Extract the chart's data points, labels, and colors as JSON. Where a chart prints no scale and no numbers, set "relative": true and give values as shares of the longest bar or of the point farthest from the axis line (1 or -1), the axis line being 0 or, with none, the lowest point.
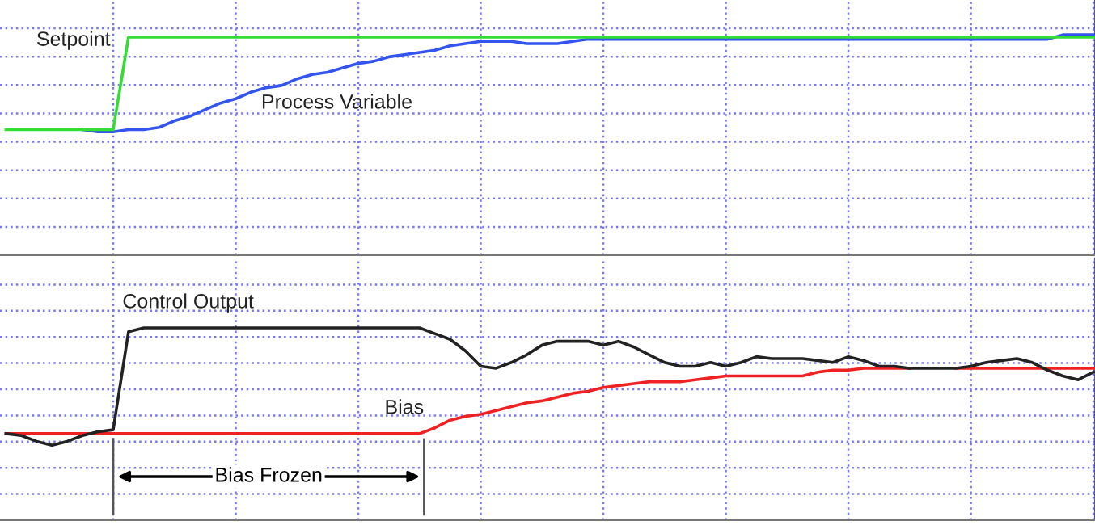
{
  "chart_data": [
    {
      "type": "line",
      "relative": true,
      "grid": true,
      "legend": false,
      "categories": [
        null,
        null,
        null,
        null,
        null,
        null,
        null,
        null,
        null,
        null,
        null,
        null,
        null,
        null,
        null,
        null,
        null,
        null,
        null,
        null,
        null,
        null,
        null,
        null,
        null,
        null,
        null,
        null,
        null,
        null,
        null,
        null,
        null,
        null,
        null,
        null,
        null,
        null,
        null,
        null,
        null,
        null,
        null,
        null,
        null,
        null,
        null,
        null,
        null,
        null,
        null,
        null,
        null,
        null,
        null,
        null,
        null,
        null,
        null,
        null,
        null,
        null,
        null,
        null,
        null,
        null,
        null,
        null,
        null,
        null,
        null,
        null
      ],
      "series": [
        {
          "name": "Setpoint",
          "color": "#33dd33",
          "values": [
            0.57,
            0.57,
            0.57,
            0.57,
            0.57,
            0.57,
            0.57,
            0.57,
            0.99,
            0.99,
            0.99,
            0.99,
            0.99,
            0.99,
            0.99,
            0.99,
            0.99,
            0.99,
            0.99,
            0.99,
            0.99,
            0.99,
            0.99,
            0.99,
            0.99,
            0.99,
            0.99,
            0.99,
            0.99,
            0.99,
            0.99,
            0.99,
            0.99,
            0.99,
            0.99,
            0.99,
            0.99,
            0.99,
            0.99,
            0.99,
            0.99,
            0.99,
            0.99,
            0.99,
            0.99,
            0.99,
            0.99,
            0.99,
            0.99,
            0.99,
            0.99,
            0.99,
            0.99,
            0.99,
            0.99,
            0.99,
            0.99,
            0.99,
            0.99,
            0.99,
            0.99,
            0.99,
            0.99,
            0.99,
            0.99,
            0.99,
            0.99,
            0.99,
            0.99,
            0.99,
            0.99,
            0.99
          ]
        },
        {
          "name": "Process Variable",
          "color": "#3355ee",
          "values": [
            null,
            null,
            null,
            null,
            null,
            0.57,
            0.56,
            0.56,
            0.57,
            0.57,
            0.58,
            0.61,
            0.63,
            0.66,
            0.69,
            0.71,
            0.74,
            0.76,
            0.77,
            0.8,
            0.82,
            0.83,
            0.85,
            0.87,
            0.88,
            0.9,
            0.91,
            0.92,
            0.93,
            0.95,
            0.96,
            0.97,
            0.97,
            0.97,
            0.96,
            0.96,
            0.96,
            0.97,
            0.98,
            0.98,
            0.98,
            0.98,
            0.98,
            0.98,
            0.98,
            0.98,
            0.98,
            0.98,
            0.98,
            0.98,
            0.98,
            0.98,
            0.98,
            0.98,
            0.98,
            0.98,
            0.98,
            0.98,
            0.98,
            0.98,
            0.98,
            0.98,
            0.98,
            0.98,
            0.98,
            0.98,
            0.98,
            0.98,
            0.98,
            1.0,
            1.0,
            1.0
          ]
        }
      ]
    },
    {
      "type": "line",
      "relative": true,
      "grid": true,
      "legend": false,
      "categories": [
        null,
        null,
        null,
        null,
        null,
        null,
        null,
        null,
        null,
        null,
        null,
        null,
        null,
        null,
        null,
        null,
        null,
        null,
        null,
        null,
        null,
        null,
        null,
        null,
        null,
        null,
        null,
        null,
        null,
        null,
        null,
        null,
        null,
        null,
        null,
        null,
        null,
        null,
        null,
        null,
        null,
        null,
        null,
        null,
        null,
        null,
        null,
        null,
        null,
        null,
        null,
        null,
        null,
        null,
        null,
        null,
        null,
        null,
        null,
        null,
        null,
        null,
        null,
        null,
        null,
        null,
        null,
        null,
        null,
        null,
        null,
        null
      ],
      "annotations": [
        "Bias Frozen"
      ],
      "series": [
        {
          "name": "Control Output",
          "color": "#222222",
          "values": [
            0.45,
            0.44,
            0.41,
            0.39,
            0.41,
            0.44,
            0.46,
            0.47,
            0.98,
            1.0,
            1.0,
            1.0,
            1.0,
            1.0,
            1.0,
            1.0,
            1.0,
            1.0,
            1.0,
            1.0,
            1.0,
            1.0,
            1.0,
            1.0,
            1.0,
            1.0,
            1.0,
            1.0,
            0.97,
            0.94,
            0.88,
            0.8,
            0.79,
            0.82,
            0.86,
            0.91,
            0.93,
            0.93,
            0.93,
            0.91,
            0.93,
            0.9,
            0.86,
            0.82,
            0.8,
            0.8,
            0.82,
            0.8,
            0.82,
            0.85,
            0.84,
            0.84,
            0.84,
            0.83,
            0.82,
            0.85,
            0.83,
            0.8,
            0.8,
            0.79,
            0.79,
            0.79,
            0.79,
            0.8,
            0.82,
            0.83,
            0.84,
            0.82,
            0.78,
            0.75,
            0.73,
            0.77
          ]
        },
        {
          "name": "Bias",
          "color": "#ee2222",
          "values": [
            0.45,
            0.45,
            0.45,
            0.45,
            0.45,
            0.45,
            0.45,
            0.45,
            0.45,
            0.45,
            0.45,
            0.45,
            0.45,
            0.45,
            0.45,
            0.45,
            0.45,
            0.45,
            0.45,
            0.45,
            0.45,
            0.45,
            0.45,
            0.45,
            0.45,
            0.45,
            0.45,
            0.45,
            0.48,
            0.52,
            0.54,
            0.55,
            0.57,
            0.59,
            0.61,
            0.62,
            0.64,
            0.66,
            0.67,
            0.69,
            0.7,
            0.71,
            0.72,
            0.72,
            0.72,
            0.73,
            0.74,
            0.75,
            0.75,
            0.75,
            0.75,
            0.75,
            0.75,
            0.77,
            0.78,
            0.78,
            0.79,
            0.79,
            0.79,
            0.79,
            null,
            null,
            0.79,
            0.79,
            0.79,
            0.79,
            0.79,
            0.79,
            0.79,
            0.79,
            0.79,
            0.79
          ]
        }
      ]
    }
  ]
}
